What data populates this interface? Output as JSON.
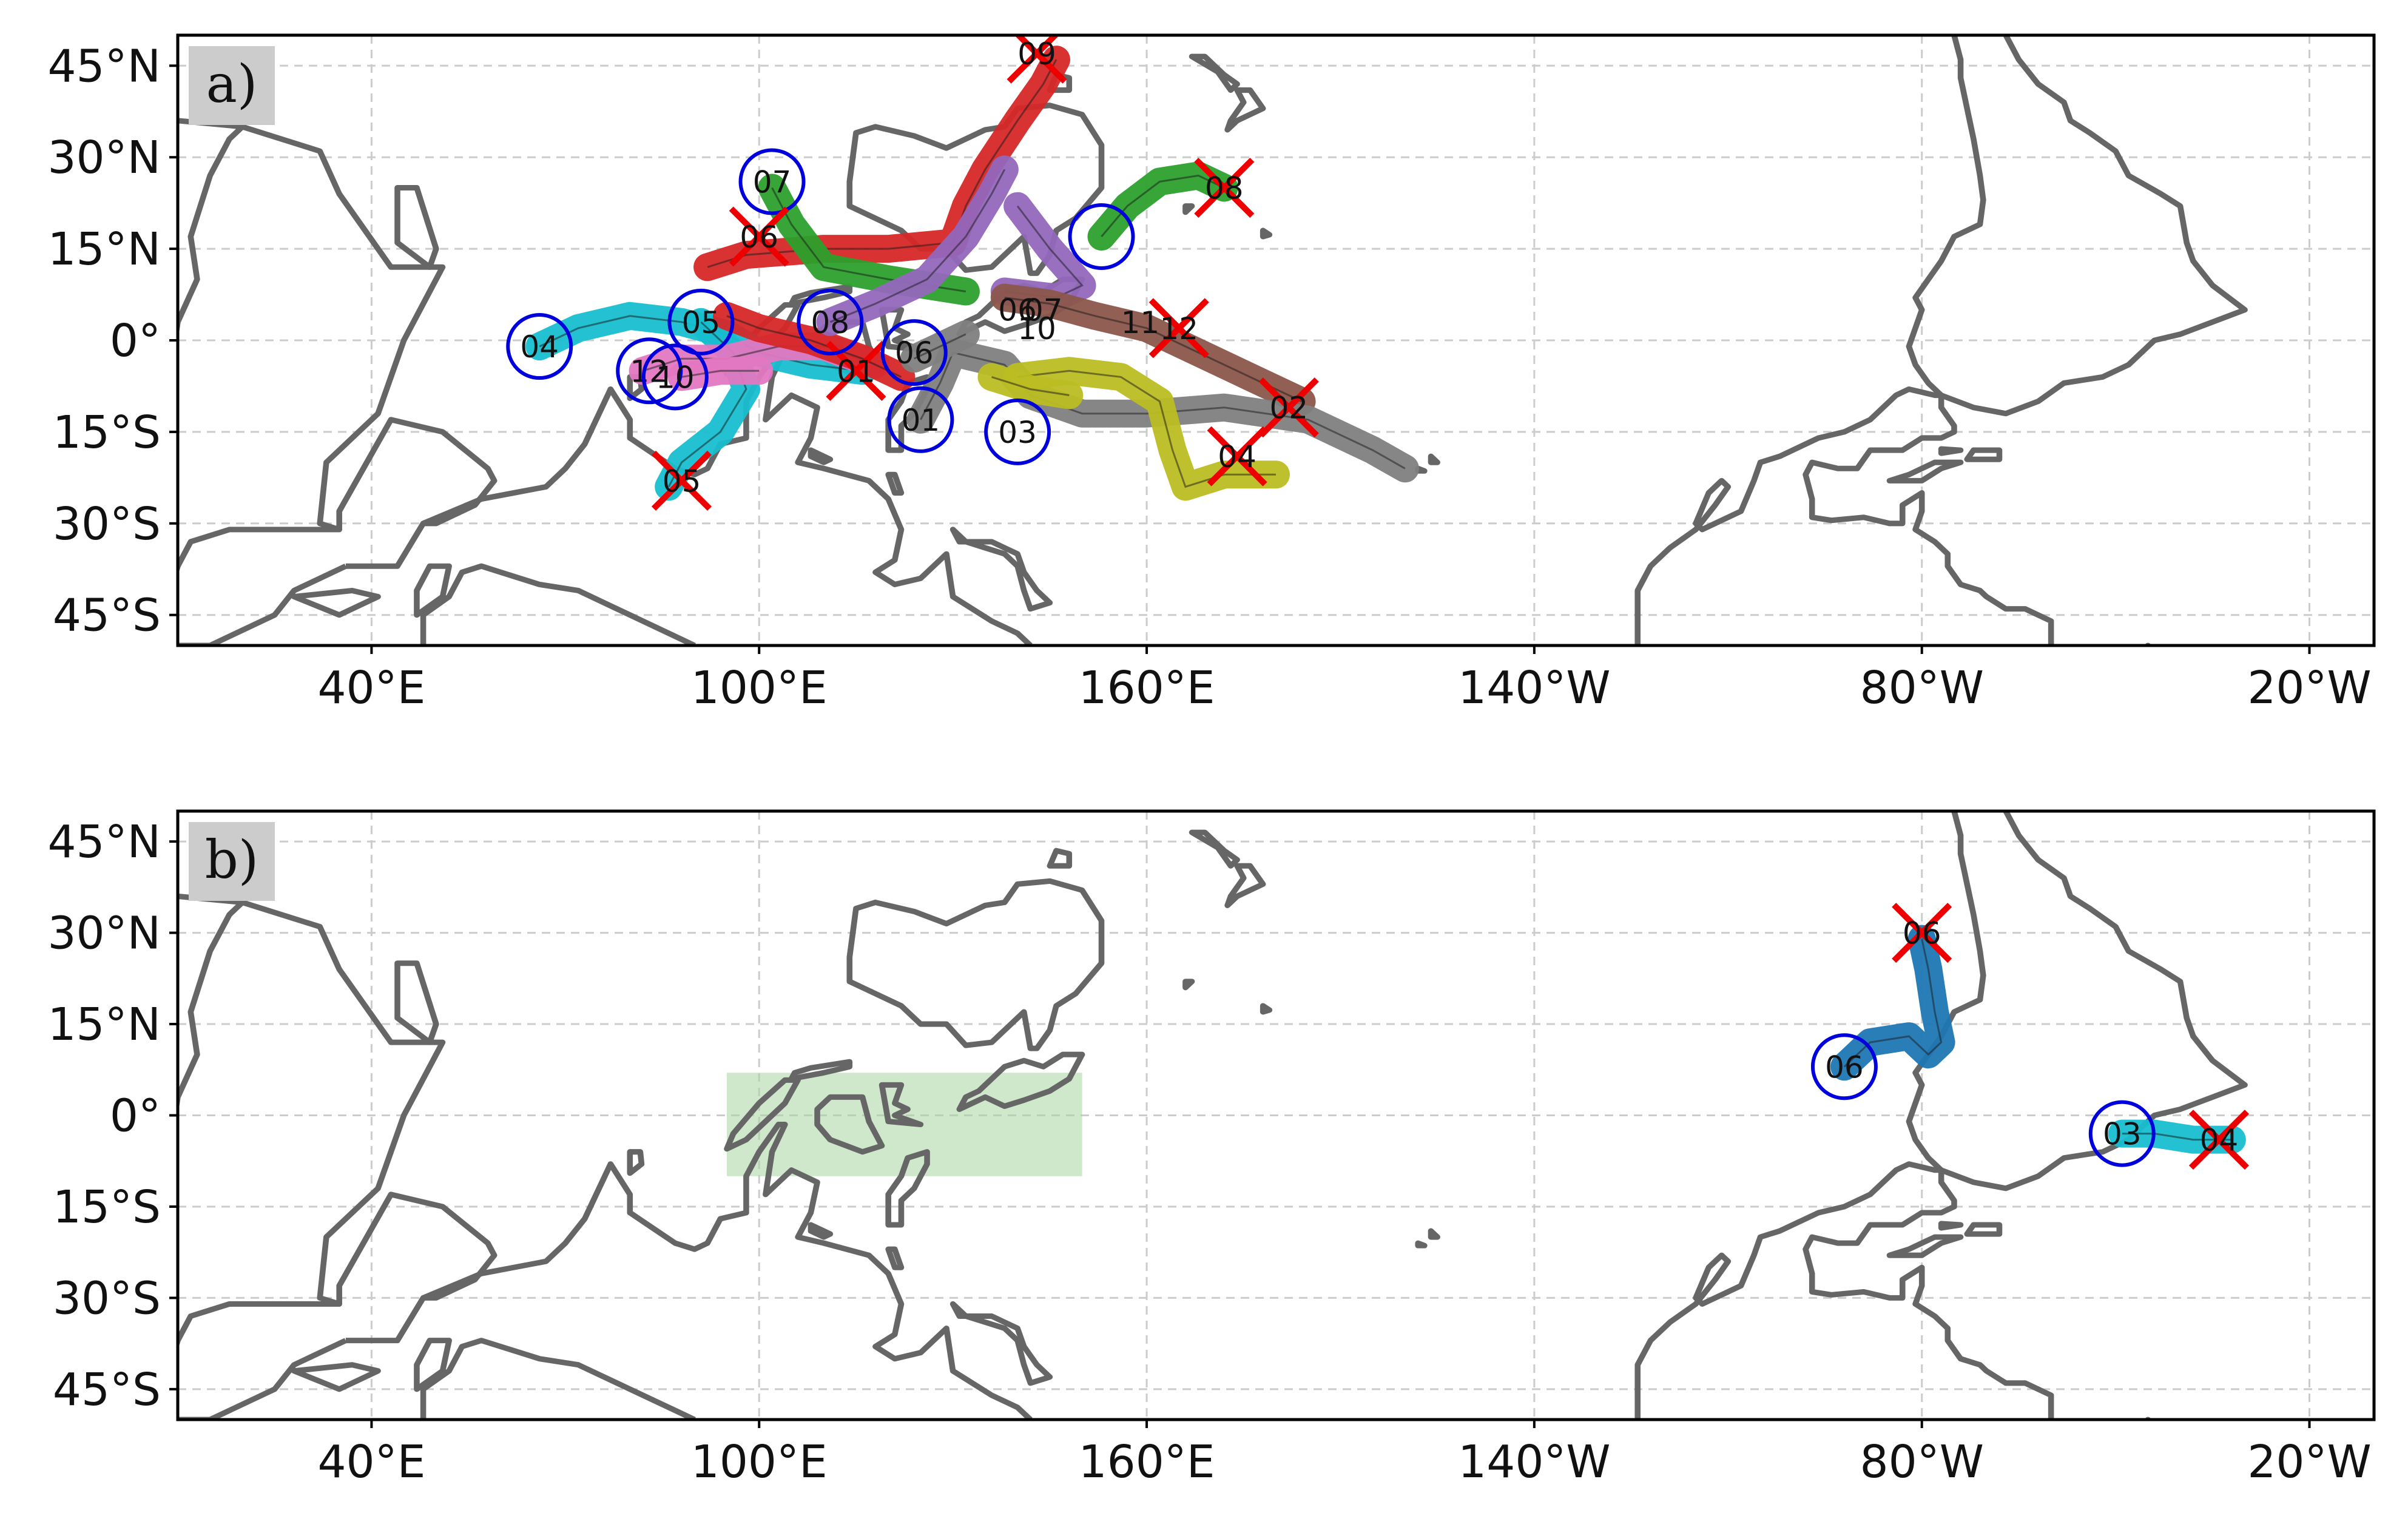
{
  "figure": {
    "lon_range": [
      10,
      350
    ],
    "lat_range": [
      -50,
      50
    ],
    "x_ticks": [
      {
        "lon": 40,
        "label": "40°E"
      },
      {
        "lon": 100,
        "label": "100°E"
      },
      {
        "lon": 160,
        "label": "160°E"
      },
      {
        "lon": 220,
        "label": "140°W"
      },
      {
        "lon": 280,
        "label": "80°W"
      },
      {
        "lon": 340,
        "label": "20°W"
      }
    ],
    "y_ticks": [
      {
        "lat": 45,
        "label": "45°N"
      },
      {
        "lat": 30,
        "label": "30°N"
      },
      {
        "lat": 15,
        "label": "15°N"
      },
      {
        "lat": 0,
        "label": "0°"
      },
      {
        "lat": -15,
        "label": "15°S"
      },
      {
        "lat": -30,
        "label": "30°S"
      },
      {
        "lat": -45,
        "label": "45°S"
      }
    ],
    "colors": {
      "coast": "#666666",
      "grid": "#cccccc",
      "start_marker": "#0000dd",
      "end_marker": "#ee0000",
      "region_box": "#a8d5a2",
      "panel_label_bg": "#cccccc"
    },
    "start_marker": "open-circle",
    "end_marker": "x-cross"
  },
  "panels": [
    {
      "id": "a",
      "label": "a)",
      "tracks": [
        {
          "color": "#17becf",
          "points": [
            [
              66,
              -1
            ],
            [
              72,
              2
            ],
            [
              80,
              4
            ],
            [
              88,
              3
            ],
            [
              95,
              1
            ],
            [
              100,
              -2
            ],
            [
              108,
              -4
            ],
            [
              116,
              -5
            ]
          ],
          "start": {
            "lon": 66,
            "lat": -1,
            "label": "04"
          },
          "end": null
        },
        {
          "color": "#17becf",
          "points": [
            [
              91,
              3
            ],
            [
              96,
              -2
            ],
            [
              98,
              -8
            ],
            [
              94,
              -15
            ],
            [
              88,
              -20
            ],
            [
              86,
              -24
            ]
          ],
          "start": {
            "lon": 91,
            "lat": 3,
            "label": "05"
          },
          "end": {
            "lon": 88,
            "lat": -23,
            "label": "05"
          }
        },
        {
          "color": "#e377c2",
          "points": [
            [
              82,
              -5
            ],
            [
              88,
              -3
            ],
            [
              95,
              -3
            ],
            [
              103,
              -1
            ],
            [
              110,
              -1
            ],
            [
              118,
              -4
            ]
          ],
          "start": {
            "lon": 83,
            "lat": -5,
            "label": "12"
          },
          "end": null
        },
        {
          "color": "#e377c2",
          "points": [
            [
              88,
              -6
            ],
            [
              94,
              -5
            ],
            [
              100,
              -5
            ]
          ],
          "start": {
            "lon": 87,
            "lat": -6,
            "label": "10"
          },
          "end": null
        },
        {
          "color": "#d62728",
          "points": [
            [
              92,
              12
            ],
            [
              98,
              14
            ],
            [
              110,
              15
            ],
            [
              120,
              15
            ],
            [
              130,
              16
            ],
            [
              132,
              22
            ],
            [
              135,
              28
            ],
            [
              140,
              36
            ],
            [
              144,
              42
            ],
            [
              146,
              46
            ]
          ],
          "start": null,
          "end": {
            "lon": 143,
            "lat": 47,
            "label": "09"
          }
        },
        {
          "color": "#d62728",
          "points": [
            [
              95,
              4
            ],
            [
              100,
              2
            ],
            [
              108,
              0
            ],
            [
              116,
              -3
            ],
            [
              122,
              -6
            ]
          ],
          "start": null,
          "end": {
            "lon": 115,
            "lat": -5,
            "label": "01"
          }
        },
        {
          "color": "#2ca02c",
          "points": [
            [
              102,
              25
            ],
            [
              105,
              19
            ],
            [
              110,
              12
            ],
            [
              120,
              10
            ],
            [
              132,
              8
            ]
          ],
          "start": {
            "lon": 102,
            "lat": 26,
            "label": "07"
          },
          "end": {
            "lon": 100,
            "lat": 17,
            "label": "06"
          }
        },
        {
          "color": "#2ca02c",
          "points": [
            [
              153,
              17
            ],
            [
              157,
              22
            ],
            [
              162,
              26
            ],
            [
              168,
              27
            ],
            [
              172,
              25
            ]
          ],
          "start": {
            "lon": 153,
            "lat": 17,
            "label": ""
          },
          "end": {
            "lon": 172,
            "lat": 25,
            "label": "08"
          }
        },
        {
          "color": "#9467bd",
          "points": [
            [
              111,
              3
            ],
            [
              118,
              6
            ],
            [
              126,
              10
            ],
            [
              132,
              17
            ],
            [
              136,
              24
            ],
            [
              138,
              28
            ]
          ],
          "start": {
            "lon": 111,
            "lat": 3,
            "label": "08"
          },
          "end": null
        },
        {
          "color": "#9467bd",
          "points": [
            [
              140,
              22
            ],
            [
              145,
              15
            ],
            [
              150,
              9
            ],
            [
              146,
              7
            ],
            [
              138,
              8
            ]
          ],
          "start": null,
          "end": null
        },
        {
          "color": "#8c564b",
          "points": [
            [
              138,
              7
            ],
            [
              145,
              6
            ],
            [
              152,
              4
            ],
            [
              160,
              2
            ],
            [
              168,
              -2
            ],
            [
              176,
              -6
            ],
            [
              184,
              -10
            ]
          ],
          "start": null,
          "end": {
            "lon": 165,
            "lat": 2,
            "label": "12"
          }
        },
        {
          "color": "#7f7f7f",
          "points": [
            [
              125,
              -13
            ],
            [
              128,
              -7
            ],
            [
              130,
              -2
            ],
            [
              138,
              -4
            ],
            [
              142,
              -9
            ],
            [
              150,
              -12
            ],
            [
              160,
              -12
            ],
            [
              172,
              -11
            ],
            [
              185,
              -13
            ],
            [
              195,
              -18
            ],
            [
              200,
              -21
            ]
          ],
          "start": {
            "lon": 125,
            "lat": -13,
            "label": "01"
          },
          "end": {
            "lon": 182,
            "lat": -11,
            "label": "02"
          }
        },
        {
          "color": "#7f7f7f",
          "points": [
            [
              124,
              -3
            ],
            [
              128,
              -1
            ],
            [
              132,
              1
            ]
          ],
          "start": {
            "lon": 124,
            "lat": -2,
            "label": "06"
          },
          "end": null
        },
        {
          "color": "#bcbd22",
          "points": [
            [
              140,
              -6
            ],
            [
              148,
              -5
            ],
            [
              156,
              -6
            ],
            [
              162,
              -10
            ],
            [
              164,
              -18
            ],
            [
              166,
              -24
            ],
            [
              172,
              -22
            ],
            [
              180,
              -22
            ]
          ],
          "start": {
            "lon": 140,
            "lat": -15,
            "label": "03"
          },
          "end": {
            "lon": 174,
            "lat": -19,
            "label": "04"
          }
        },
        {
          "color": "#bcbd22",
          "points": [
            [
              136,
              -6
            ],
            [
              142,
              -8
            ],
            [
              148,
              -9
            ]
          ],
          "start": null,
          "end": null
        }
      ],
      "labels": [
        {
          "lon": 140,
          "lat": 5,
          "text": "06"
        },
        {
          "lon": 144,
          "lat": 5,
          "text": "07"
        },
        {
          "lon": 143,
          "lat": 2,
          "text": "10"
        },
        {
          "lon": 159,
          "lat": 3,
          "text": "11"
        }
      ],
      "region": null
    },
    {
      "id": "b",
      "label": "b)",
      "tracks": [
        {
          "color": "#1f77b4",
          "points": [
            [
              268,
              8
            ],
            [
              272,
              12
            ],
            [
              278,
              13
            ],
            [
              281,
              10
            ],
            [
              283,
              12
            ],
            [
              282,
              17
            ],
            [
              281,
              24
            ],
            [
              280,
              29
            ]
          ],
          "start": {
            "lon": 268,
            "lat": 8,
            "label": "06"
          },
          "end": {
            "lon": 280,
            "lat": 30,
            "label": "06"
          }
        },
        {
          "color": "#17becf",
          "points": [
            [
              311,
              -3
            ],
            [
              316,
              -3
            ],
            [
              322,
              -4
            ],
            [
              328,
              -4
            ]
          ],
          "start": {
            "lon": 311,
            "lat": -3,
            "label": "03"
          },
          "end": {
            "lon": 326,
            "lat": -4,
            "label": "04"
          }
        }
      ],
      "labels": [],
      "region": {
        "lon_min": 95,
        "lon_max": 150,
        "lat_min": -10,
        "lat_max": 7
      }
    }
  ]
}
